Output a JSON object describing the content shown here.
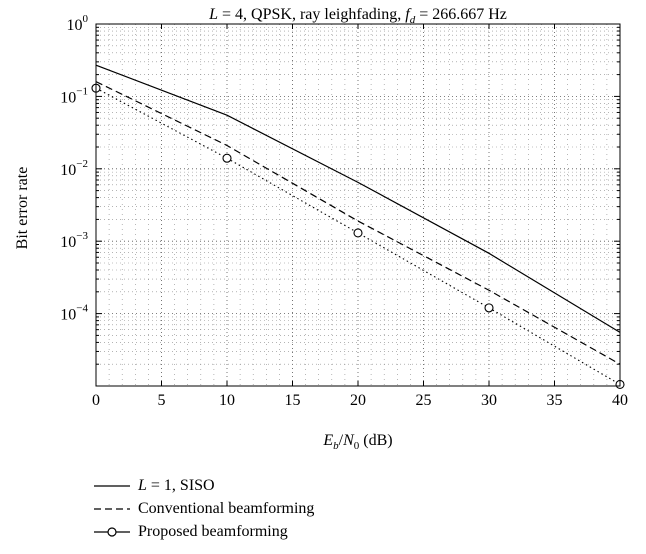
{
  "chart_data": {
    "type": "line",
    "title_parts": {
      "prefix": "L",
      "mid": " = 4, QPSK, ray leighfading, ",
      "f_symbol": "f",
      "f_subscript": "d",
      "suffix": " = 266.667 Hz"
    },
    "xlabel_parts": {
      "e": "E",
      "e_sub": "b",
      "slash": "/",
      "n": "N",
      "n_sub": "0",
      "unit": " (dB)"
    },
    "ylabel": "Bit error rate",
    "x_ticks": [
      "0",
      "5",
      "10",
      "15",
      "20",
      "25",
      "30",
      "35",
      "40"
    ],
    "y_ticks": [
      {
        "base": "10",
        "exp": "0",
        "value": 1
      },
      {
        "base": "10",
        "exp": "−1",
        "value": 0.1
      },
      {
        "base": "10",
        "exp": "−2",
        "value": 0.01
      },
      {
        "base": "10",
        "exp": "−3",
        "value": 0.001
      },
      {
        "base": "10",
        "exp": "−4",
        "value": 0.0001
      }
    ],
    "xlim": [
      0,
      40
    ],
    "ylim": [
      1e-05,
      1
    ],
    "y_scale": "log",
    "grid": true,
    "legend_position": "below",
    "series": [
      {
        "key": "siso",
        "style": "solid",
        "label_italic": "L",
        "label_rest": " = 1, SISO",
        "x": [
          0,
          10,
          20,
          30,
          40
        ],
        "y": [
          0.27,
          0.055,
          0.0065,
          0.00068,
          5.5e-05
        ]
      },
      {
        "key": "conventional",
        "style": "dashed",
        "label_italic": "",
        "label_rest": "Conventional beamforming",
        "x": [
          0,
          10,
          20,
          30,
          40
        ],
        "y": [
          0.16,
          0.021,
          0.0019,
          0.00021,
          2e-05
        ]
      },
      {
        "key": "proposed",
        "style": "dotted-circle",
        "label_italic": "",
        "label_rest": "Proposed beamforming",
        "x": [
          0,
          10,
          20,
          30,
          40
        ],
        "y": [
          0.13,
          0.014,
          0.0013,
          0.00012,
          1.05e-05
        ]
      }
    ]
  }
}
